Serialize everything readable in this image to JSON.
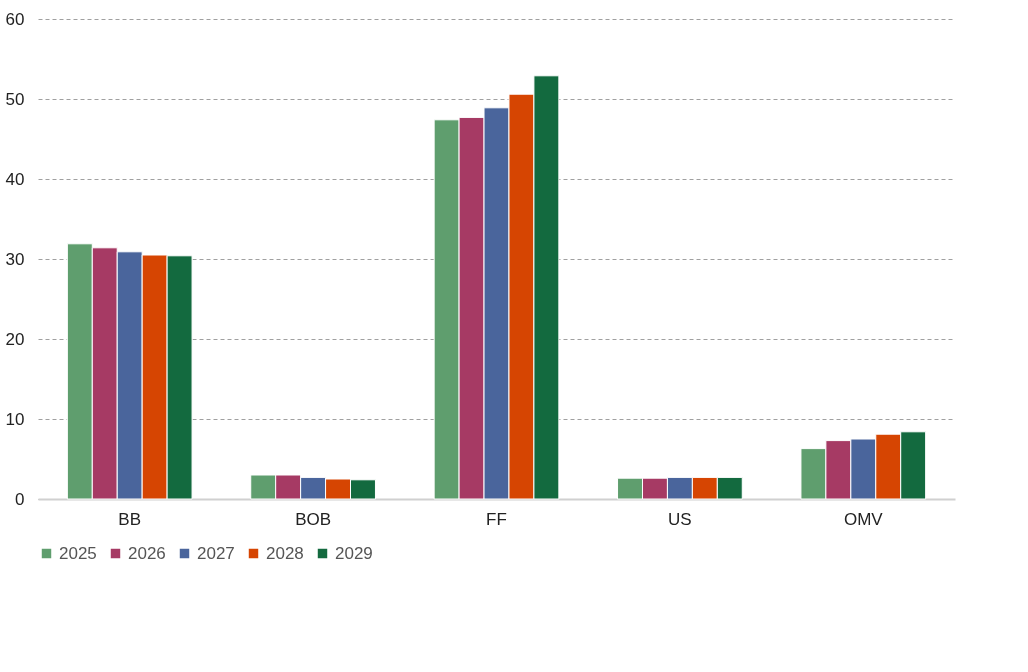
{
  "chart_data": {
    "type": "bar",
    "categories": [
      "BB",
      "BOB",
      "FF",
      "US",
      "OMV"
    ],
    "series": [
      {
        "name": "2025",
        "color": "#5f9e6e",
        "values": [
          31.9,
          3.0,
          47.4,
          2.6,
          6.3
        ]
      },
      {
        "name": "2026",
        "color": "#a63a64",
        "values": [
          31.4,
          3.0,
          47.7,
          2.6,
          7.3
        ]
      },
      {
        "name": "2027",
        "color": "#4a659c",
        "values": [
          30.9,
          2.7,
          48.9,
          2.7,
          7.5
        ]
      },
      {
        "name": "2028",
        "color": "#d64502",
        "values": [
          30.5,
          2.5,
          50.6,
          2.7,
          8.1
        ]
      },
      {
        "name": "2029",
        "color": "#136a3f",
        "values": [
          30.4,
          2.4,
          52.9,
          2.7,
          8.4
        ]
      }
    ],
    "ylim": [
      0,
      60
    ],
    "yticks": [
      0,
      10,
      20,
      30,
      40,
      50,
      60
    ],
    "grid": "y",
    "legend": "bottom"
  }
}
